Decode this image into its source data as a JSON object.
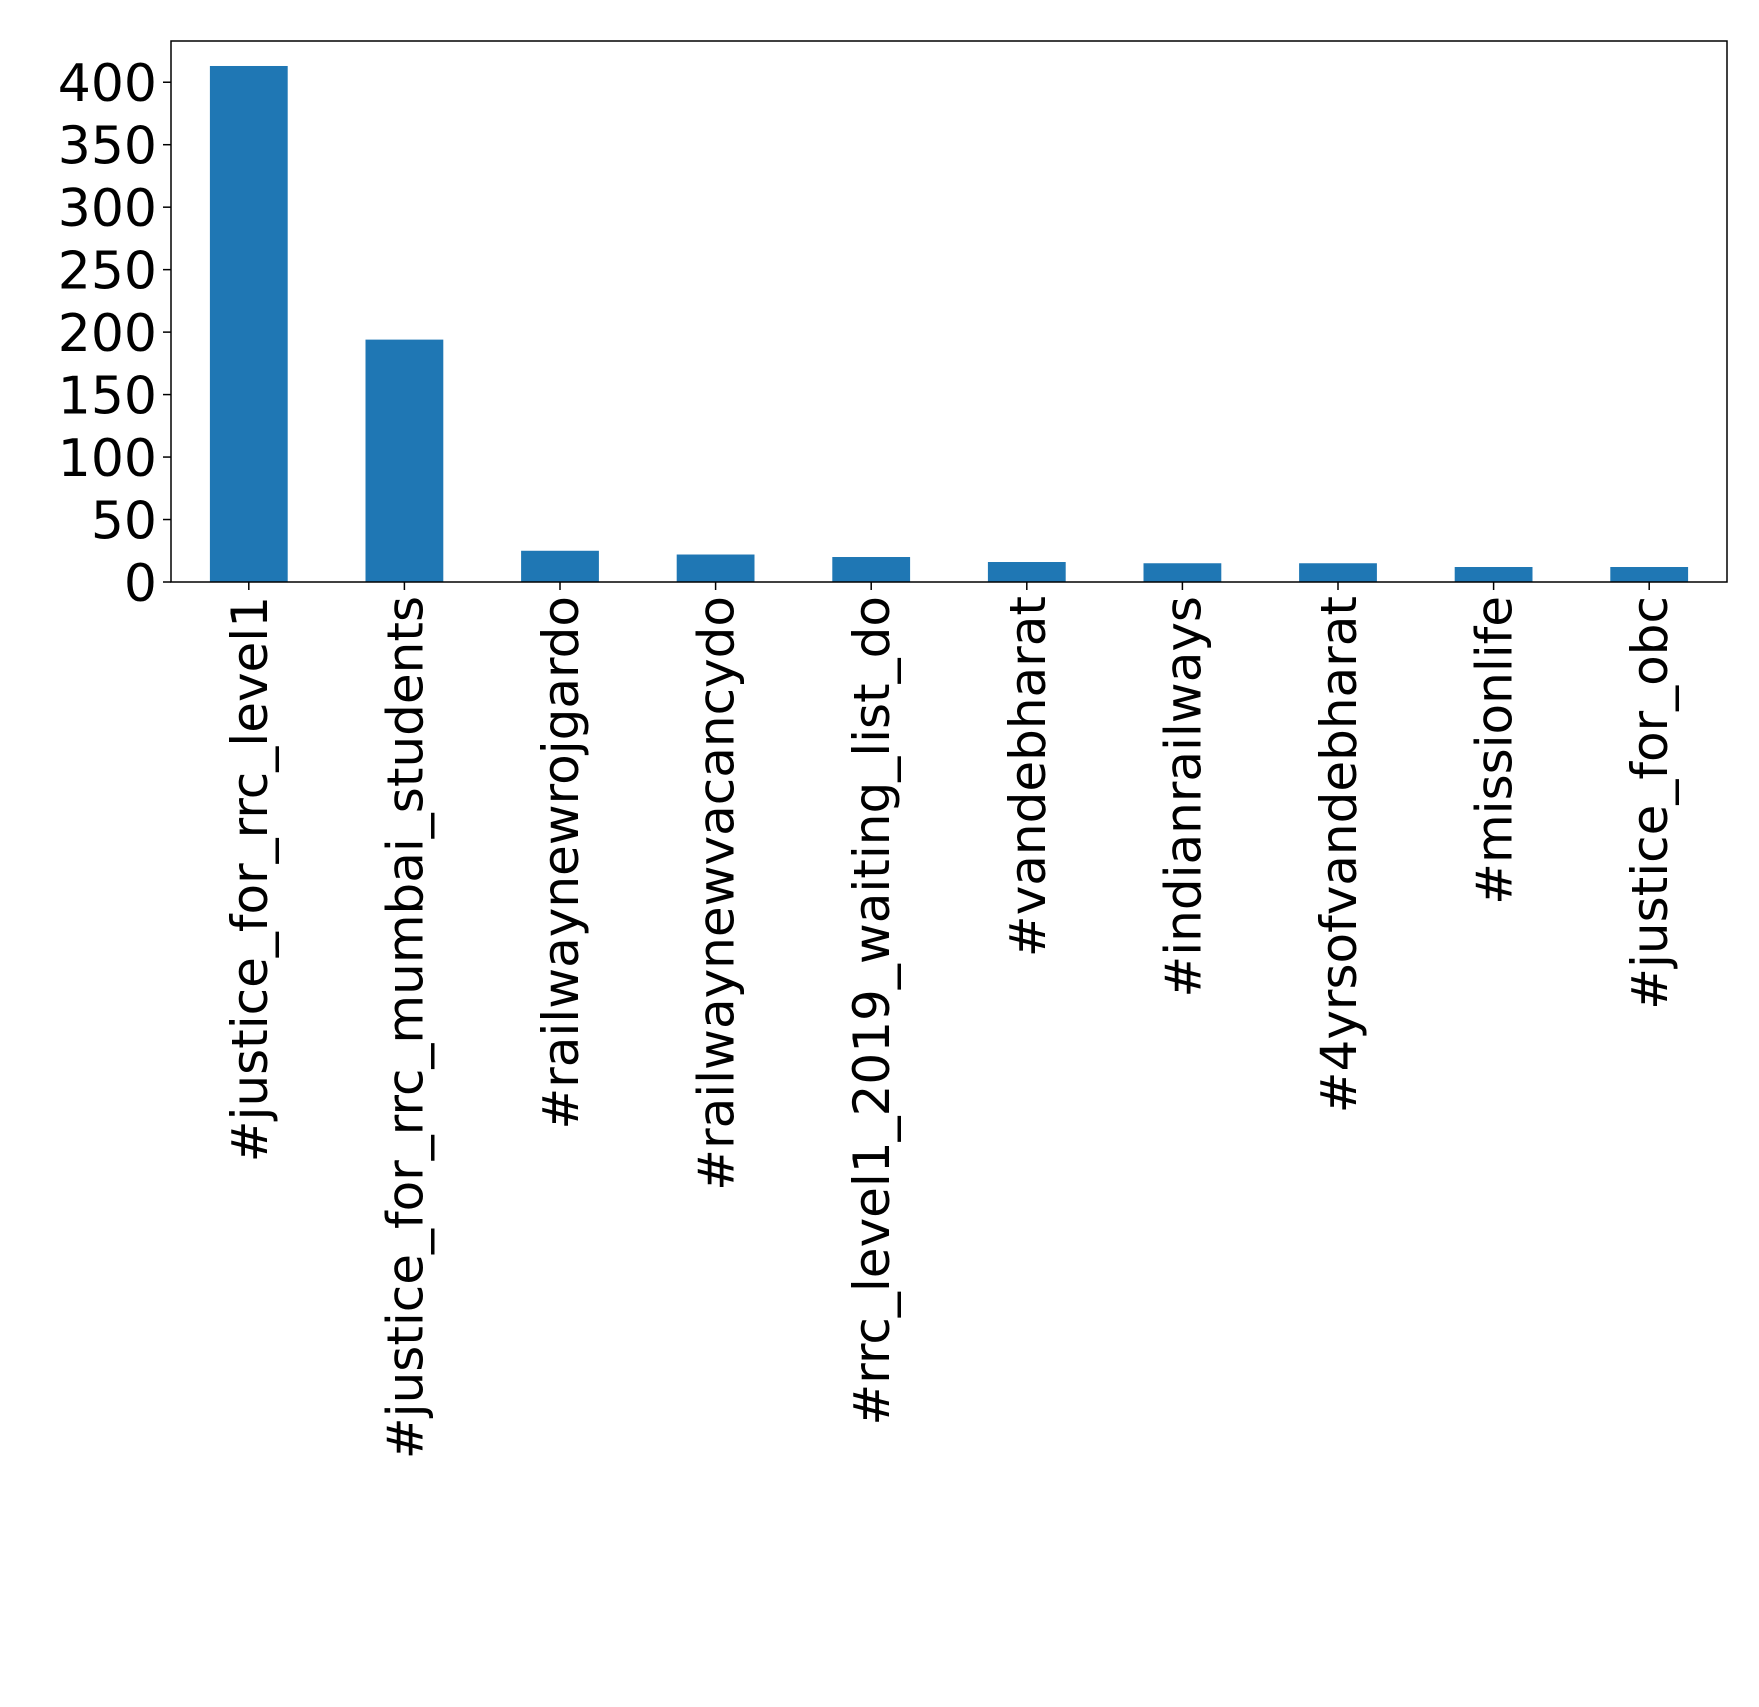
{
  "chart_data": {
    "type": "bar",
    "title": "",
    "xlabel": "",
    "ylabel": "",
    "categories": [
      "#justice_for_rrc_level1",
      "#justice_for_rrc_mumbai_students",
      "#railwaynewrojgardo",
      "#railwaynewvacancydo",
      "#rrc_level1_2019_waiting_list_do",
      "#vandebharat",
      "#indianrailways",
      "#4yrsofvandebharat",
      "#missionlife",
      "#justice_for_obc"
    ],
    "values": [
      413,
      194,
      25,
      22,
      20,
      16,
      15,
      15,
      12,
      12
    ],
    "ylim": [
      0,
      433
    ],
    "yticks": [
      0,
      50,
      100,
      150,
      200,
      250,
      300,
      350,
      400
    ],
    "grid": false,
    "legend": "none",
    "bar_color": "#1f77b4"
  }
}
